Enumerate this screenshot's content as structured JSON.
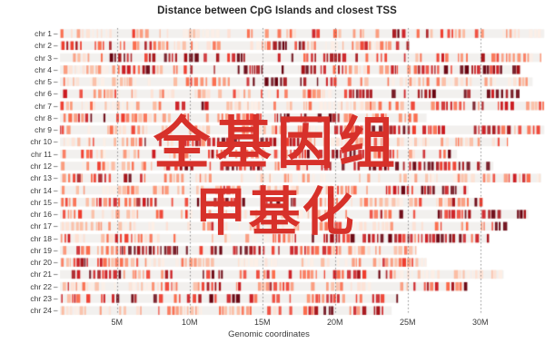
{
  "overlay": {
    "line1": "全基因组",
    "line2": "甲基化",
    "color": "#d7312a"
  },
  "chart_data": {
    "type": "heatmap",
    "title": "Distance between CpG Islands and closest TSS",
    "xlabel": "Genomic coordinates",
    "x_ticks": [
      "5M",
      "10M",
      "15M",
      "20M",
      "25M",
      "30M"
    ],
    "x_tick_values_m": [
      5,
      10,
      15,
      20,
      25,
      30
    ],
    "xlim_m": [
      0,
      34.5
    ],
    "grid": "dotted-vertical",
    "legend_position": "none",
    "colormap": "Reds",
    "palette": [
      "#fdeee5",
      "#fee0d2",
      "#fcbba1",
      "#fc9272",
      "#fb6a4a",
      "#ef3b2c",
      "#cb181d",
      "#a50f15",
      "#67000d"
    ],
    "strip_background": "#f2f0ee",
    "gridline_color": "#8a8a8a",
    "chromosomes": [
      {
        "name": "chr 1",
        "length_m": 34.4
      },
      {
        "name": "chr 2",
        "length_m": 25.1
      },
      {
        "name": "chr 3",
        "length_m": 34.2
      },
      {
        "name": "chr 4",
        "length_m": 32.8
      },
      {
        "name": "chr 5",
        "length_m": 33.6
      },
      {
        "name": "chr 6",
        "length_m": 32.7
      },
      {
        "name": "chr 7",
        "length_m": 34.4
      },
      {
        "name": "chr 8",
        "length_m": 26.3
      },
      {
        "name": "chr 9",
        "length_m": 34.4
      },
      {
        "name": "chr 10",
        "length_m": 31.9
      },
      {
        "name": "chr 11",
        "length_m": 28.4
      },
      {
        "name": "chr 12",
        "length_m": 30.9
      },
      {
        "name": "chr 13",
        "length_m": 34.2
      },
      {
        "name": "chr 14",
        "length_m": 29.2
      },
      {
        "name": "chr 15",
        "length_m": 30.2
      },
      {
        "name": "chr 16",
        "length_m": 33.3
      },
      {
        "name": "chr 17",
        "length_m": 31.9
      },
      {
        "name": "chr 18",
        "length_m": 30.6
      },
      {
        "name": "chr 19",
        "length_m": 25.6
      },
      {
        "name": "chr 20",
        "length_m": 26.3
      },
      {
        "name": "chr 21",
        "length_m": 31.6
      },
      {
        "name": "chr 22",
        "length_m": 29.1
      },
      {
        "name": "chr 23",
        "length_m": 24.4
      },
      {
        "name": "chr 24",
        "length_m": 23.9
      }
    ]
  }
}
